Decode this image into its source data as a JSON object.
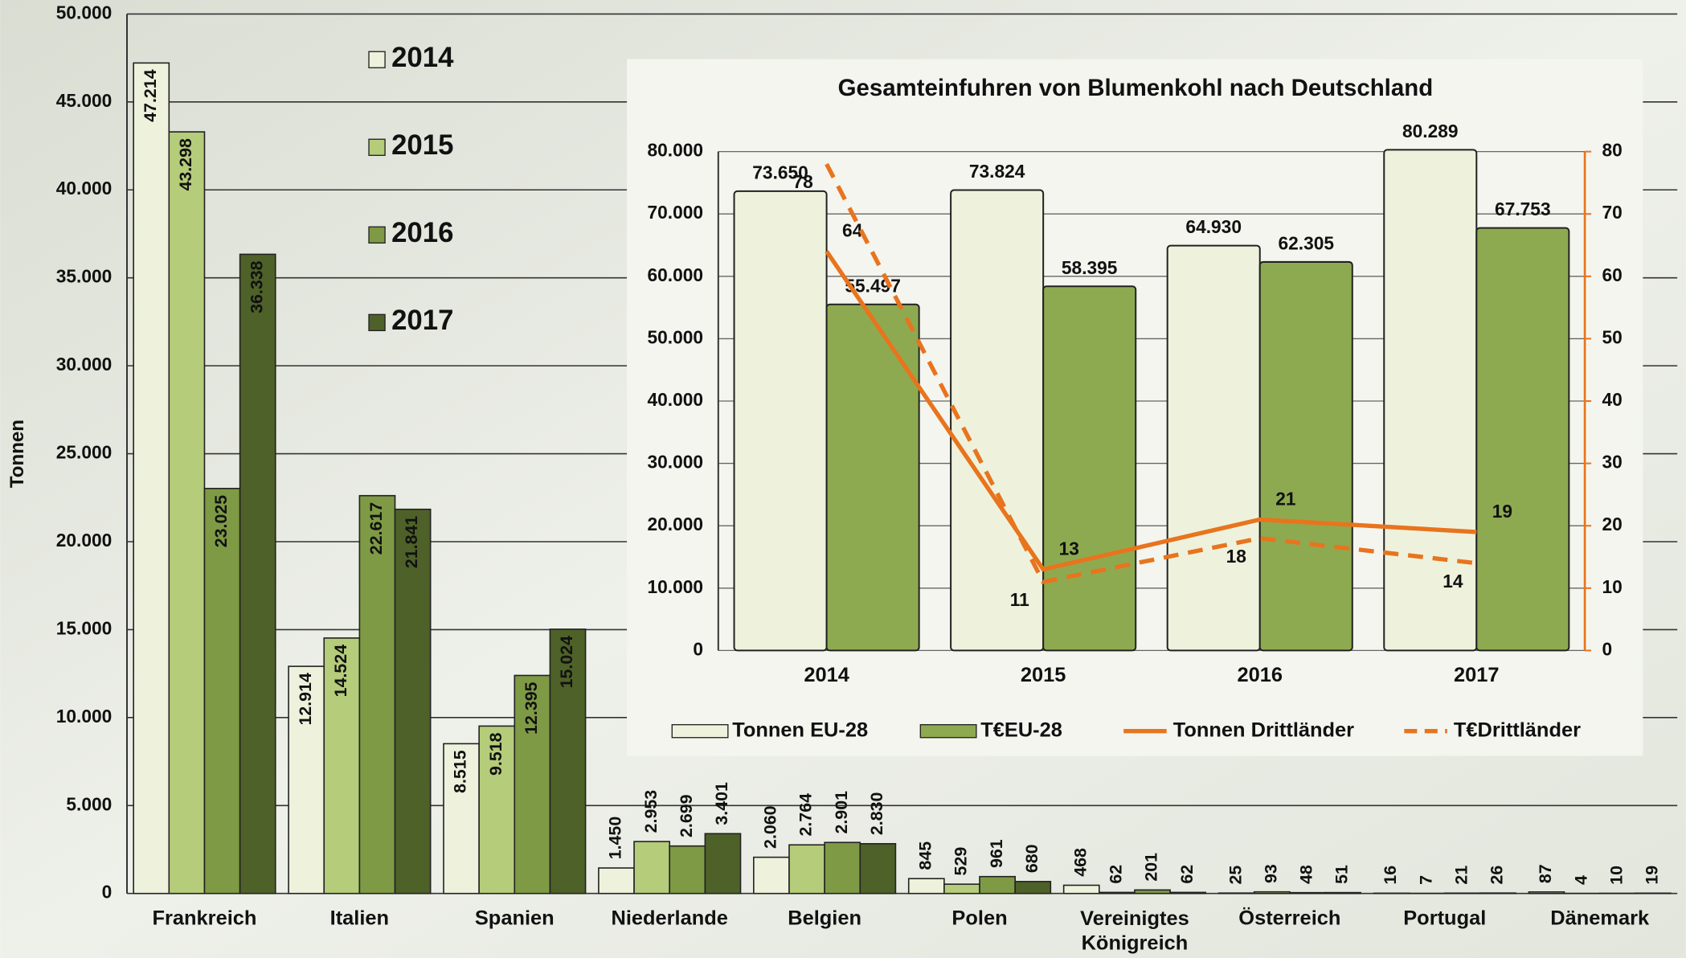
{
  "chart_data": [
    {
      "type": "bar",
      "y_label": "Tonnen",
      "categories": [
        "Frankreich",
        "Italien",
        "Spanien",
        "Niederlande",
        "Belgien",
        "Polen",
        "Vereinigtes Königreich",
        "Österreich",
        "Portugal",
        "Dänemark"
      ],
      "series": [
        {
          "name": "2014",
          "color": "#eef2dc",
          "values": [
            47214,
            12914,
            8515,
            1450,
            2060,
            845,
            468,
            25,
            16,
            87
          ],
          "value_labels": [
            "47.214",
            "12.914",
            "8.515",
            "1.450",
            "2.060",
            "845",
            "468",
            "25",
            "16",
            "87"
          ]
        },
        {
          "name": "2015",
          "color": "#b5cc7a",
          "values": [
            43298,
            14524,
            9518,
            2953,
            2764,
            529,
            62,
            93,
            7,
            4
          ],
          "value_labels": [
            "43.298",
            "14.524",
            "9.518",
            "2.953",
            "2.764",
            "529",
            "62",
            "93",
            "7",
            "4"
          ]
        },
        {
          "name": "2016",
          "color": "#7e9a45",
          "values": [
            23025,
            22617,
            12395,
            2699,
            2901,
            961,
            201,
            48,
            21,
            10
          ],
          "value_labels": [
            "23.025",
            "22.617",
            "12.395",
            "2.699",
            "2.901",
            "961",
            "201",
            "48",
            "21",
            "10"
          ]
        },
        {
          "name": "2017",
          "color": "#4e6128",
          "values": [
            36338,
            21841,
            15024,
            3401,
            2830,
            680,
            62,
            51,
            26,
            19
          ],
          "value_labels": [
            "36.338",
            "21.841",
            "15.024",
            "3.401",
            "2.830",
            "680",
            "62",
            "51",
            "26",
            "19"
          ]
        }
      ],
      "ylim": [
        0,
        50000
      ],
      "yticks": [
        0,
        {
          "value": 5000,
          "label": "5.000"
        },
        {
          "value": 10000,
          "label": "10.000"
        },
        {
          "value": 15000,
          "label": "15.000"
        },
        {
          "value": 20000,
          "label": "20.000"
        },
        {
          "value": 25000,
          "label": "25.000"
        },
        {
          "value": 30000,
          "label": "30.000"
        },
        {
          "value": 35000,
          "label": "35.000"
        },
        {
          "value": 40000,
          "label": "40.000"
        },
        {
          "value": 45000,
          "label": "45.000"
        },
        {
          "value": 50000,
          "label": "50.000"
        }
      ],
      "grid": true
    },
    {
      "type": "bar",
      "title": "Gesamteinfuhren von Blumenkohl nach Deutschland",
      "categories": [
        "2014",
        "2015",
        "2016",
        "2017"
      ],
      "series": [
        {
          "name": "Tonnen EU-28",
          "type": "bar",
          "color": "#eef2dc",
          "values": [
            73650,
            73824,
            64930,
            80289
          ],
          "value_labels": [
            "73.650",
            "73.824",
            "64.930",
            "80.289"
          ]
        },
        {
          "name": "T€EU-28",
          "type": "bar",
          "color": "#8eaa50",
          "values": [
            55497,
            58395,
            62305,
            67753
          ],
          "value_labels": [
            "55.497",
            "58.395",
            "62.305",
            "67.753"
          ]
        },
        {
          "name": "Tonnen Drittländer",
          "type": "line",
          "axis": "y2",
          "color": "#e8741e",
          "values": [
            64,
            13,
            21,
            19
          ]
        },
        {
          "name": "T€Drittländer",
          "type": "line",
          "axis": "y2",
          "dashed": true,
          "color": "#e8741e",
          "values": [
            78,
            11,
            18,
            14
          ]
        }
      ],
      "ylim": [
        0,
        80000
      ],
      "yticks": [
        0,
        {
          "value": 10000,
          "label": "10.000"
        },
        {
          "value": 20000,
          "label": "20.000"
        },
        {
          "value": 30000,
          "label": "30.000"
        },
        {
          "value": 40000,
          "label": "40.000"
        },
        {
          "value": 50000,
          "label": "50.000"
        },
        {
          "value": 60000,
          "label": "60.000"
        },
        {
          "value": 70000,
          "label": "70.000"
        },
        {
          "value": 80000,
          "label": "80.000"
        }
      ],
      "y2lim": [
        0,
        80
      ],
      "y2ticks": [
        0,
        10,
        20,
        30,
        40,
        50,
        60,
        70,
        80
      ],
      "grid": true
    }
  ]
}
